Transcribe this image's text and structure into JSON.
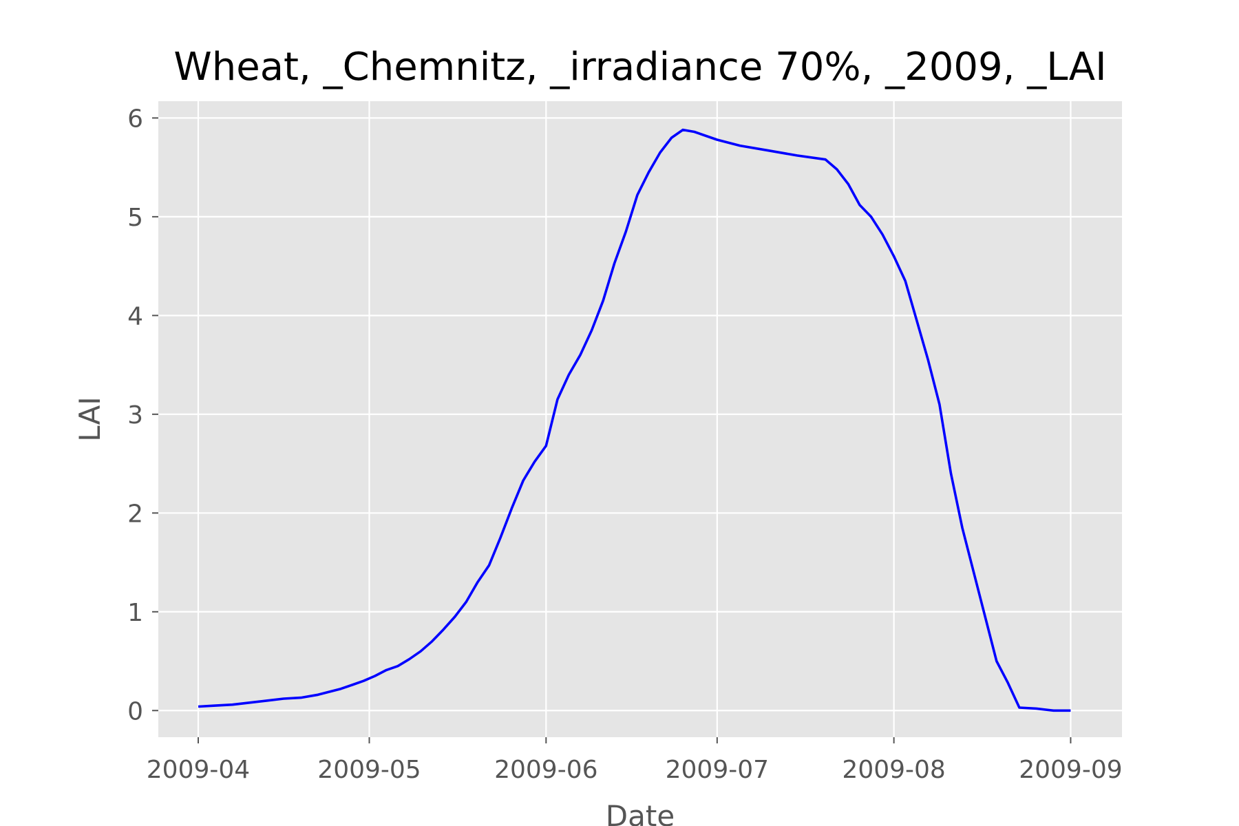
{
  "chart_data": {
    "type": "line",
    "title": "Wheat, _Chemnitz, _irradiance 70%, _2009, _LAI",
    "xlabel": "Date",
    "ylabel": "LAI",
    "x_ticks": [
      "2009-04",
      "2009-05",
      "2009-06",
      "2009-07",
      "2009-08",
      "2009-09"
    ],
    "x_tick_dates": [
      "2009-04-01",
      "2009-05-01",
      "2009-06-01",
      "2009-07-01",
      "2009-08-01",
      "2009-09-01"
    ],
    "xlim": [
      "2009-03-25",
      "2009-09-10"
    ],
    "y_ticks": [
      "0",
      "1",
      "2",
      "3",
      "4",
      "5",
      "6"
    ],
    "ylim": [
      -0.27,
      6.17
    ],
    "grid": true,
    "style": "ggplot",
    "series": [
      {
        "color": "#0000ff",
        "x": [
          "2009-04-01",
          "2009-04-04",
          "2009-04-07",
          "2009-04-10",
          "2009-04-13",
          "2009-04-16",
          "2009-04-19",
          "2009-04-22",
          "2009-04-24",
          "2009-04-26",
          "2009-04-28",
          "2009-04-30",
          "2009-05-02",
          "2009-05-04",
          "2009-05-06",
          "2009-05-08",
          "2009-05-10",
          "2009-05-12",
          "2009-05-14",
          "2009-05-16",
          "2009-05-18",
          "2009-05-20",
          "2009-05-22",
          "2009-05-24",
          "2009-05-26",
          "2009-05-28",
          "2009-05-30",
          "2009-06-01",
          "2009-06-03",
          "2009-06-05",
          "2009-06-07",
          "2009-06-09",
          "2009-06-11",
          "2009-06-13",
          "2009-06-15",
          "2009-06-17",
          "2009-06-19",
          "2009-06-21",
          "2009-06-23",
          "2009-06-25",
          "2009-06-27",
          "2009-07-01",
          "2009-07-05",
          "2009-07-10",
          "2009-07-15",
          "2009-07-20",
          "2009-07-22",
          "2009-07-24",
          "2009-07-26",
          "2009-07-28",
          "2009-07-30",
          "2009-08-01",
          "2009-08-03",
          "2009-08-05",
          "2009-08-07",
          "2009-08-09",
          "2009-08-11",
          "2009-08-13",
          "2009-08-15",
          "2009-08-17",
          "2009-08-19",
          "2009-08-21",
          "2009-08-23",
          "2009-08-26",
          "2009-08-29",
          "2009-09-01"
        ],
        "y": [
          0.04,
          0.05,
          0.06,
          0.08,
          0.1,
          0.12,
          0.13,
          0.16,
          0.19,
          0.22,
          0.26,
          0.3,
          0.35,
          0.41,
          0.45,
          0.52,
          0.6,
          0.7,
          0.82,
          0.95,
          1.1,
          1.3,
          1.47,
          1.75,
          2.05,
          2.33,
          2.52,
          2.68,
          3.15,
          3.4,
          3.6,
          3.85,
          4.15,
          4.53,
          4.85,
          5.22,
          5.45,
          5.65,
          5.8,
          5.88,
          5.86,
          5.78,
          5.72,
          5.67,
          5.62,
          5.58,
          5.48,
          5.33,
          5.12,
          5.0,
          4.82,
          4.6,
          4.35,
          3.95,
          3.55,
          3.1,
          2.4,
          1.85,
          1.4,
          0.95,
          0.5,
          0.28,
          0.03,
          0.02,
          0.0,
          0.0
        ]
      }
    ]
  }
}
